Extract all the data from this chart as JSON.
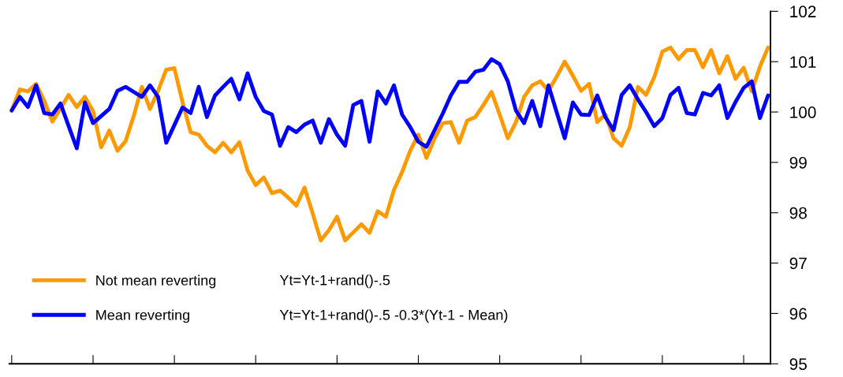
{
  "chart_data": {
    "type": "line",
    "categories": [
      null,
      null,
      null,
      null,
      null,
      null,
      null,
      null,
      null,
      null,
      null,
      null,
      null,
      null,
      null,
      null,
      null,
      null,
      null,
      null,
      null,
      null,
      null,
      null,
      null,
      null,
      null,
      null,
      null,
      null,
      null,
      null,
      null,
      null,
      null,
      null,
      null,
      null,
      null,
      null,
      null,
      null,
      null,
      null,
      null,
      null,
      null,
      null,
      null,
      null,
      null,
      null,
      null,
      null,
      null,
      null,
      null,
      null,
      null,
      null,
      null,
      null,
      null,
      null,
      null,
      null,
      null,
      null,
      null,
      null,
      null,
      null,
      null,
      null,
      null,
      null,
      null,
      null,
      null,
      null,
      null,
      null,
      null,
      null,
      null,
      null,
      null,
      null,
      null,
      null,
      null,
      null,
      null,
      null
    ],
    "series": [
      {
        "name": "Not mean reverting",
        "color": "#ff9900",
        "values": [
          100.03,
          100.45,
          100.41,
          100.56,
          100.22,
          99.81,
          100.07,
          100.34,
          100.1,
          100.3,
          100.02,
          99.3,
          99.63,
          99.23,
          99.42,
          99.92,
          100.5,
          100.06,
          100.42,
          100.84,
          100.87,
          100.2,
          99.6,
          99.55,
          99.33,
          99.2,
          99.39,
          99.2,
          99.4,
          98.84,
          98.55,
          98.7,
          98.39,
          98.44,
          98.3,
          98.14,
          98.5,
          97.99,
          97.45,
          97.65,
          97.92,
          97.45,
          97.61,
          97.77,
          97.6,
          98.03,
          97.92,
          98.45,
          98.81,
          99.23,
          99.55,
          99.09,
          99.48,
          99.78,
          99.8,
          99.39,
          99.83,
          99.9,
          100.14,
          100.4,
          99.95,
          99.48,
          99.8,
          100.3,
          100.53,
          100.61,
          100.42,
          100.7,
          101.0,
          100.72,
          100.42,
          100.56,
          99.8,
          99.95,
          99.48,
          99.33,
          99.7,
          100.5,
          100.34,
          100.69,
          101.2,
          101.28,
          101.05,
          101.23,
          101.23,
          100.89,
          101.23,
          100.77,
          101.11,
          100.66,
          100.88,
          100.41,
          100.9,
          101.28
        ]
      },
      {
        "name": "Mean reverting",
        "color": "#0000ff",
        "values": [
          100.03,
          100.3,
          100.1,
          100.53,
          99.98,
          99.95,
          100.17,
          99.72,
          99.28,
          100.19,
          99.78,
          99.92,
          100.06,
          100.42,
          100.5,
          100.4,
          100.3,
          100.53,
          100.3,
          99.39,
          99.74,
          100.09,
          99.98,
          100.5,
          99.9,
          100.33,
          100.5,
          100.66,
          100.25,
          100.77,
          100.3,
          100.02,
          99.95,
          99.33,
          99.7,
          99.6,
          99.75,
          99.83,
          99.39,
          99.86,
          99.55,
          99.33,
          100.14,
          100.22,
          99.41,
          100.41,
          100.17,
          100.53,
          99.95,
          99.7,
          99.41,
          99.31,
          99.64,
          99.97,
          100.33,
          100.6,
          100.6,
          100.8,
          100.84,
          101.05,
          100.95,
          100.61,
          100.03,
          99.78,
          100.22,
          99.72,
          100.53,
          100.0,
          99.48,
          100.19,
          99.95,
          99.94,
          100.33,
          99.9,
          99.64,
          100.34,
          100.53,
          100.25,
          100.0,
          99.72,
          99.88,
          100.34,
          100.48,
          99.98,
          99.95,
          100.38,
          100.33,
          100.53,
          99.88,
          100.2,
          100.48,
          100.61,
          99.88,
          100.33
        ]
      }
    ],
    "ylim": [
      95,
      102
    ],
    "yticks": [
      95,
      96,
      97,
      98,
      99,
      100,
      101,
      102
    ],
    "tick_labels": "y",
    "grid": false,
    "legend": "bottom left",
    "marker": "none",
    "line_style": "solid",
    "annotations": [
      "Yt=Yt-1+rand()-.5",
      "Yt=Yt-1+rand()-.5 -0.3*(Yt-1 - Mean)"
    ]
  }
}
